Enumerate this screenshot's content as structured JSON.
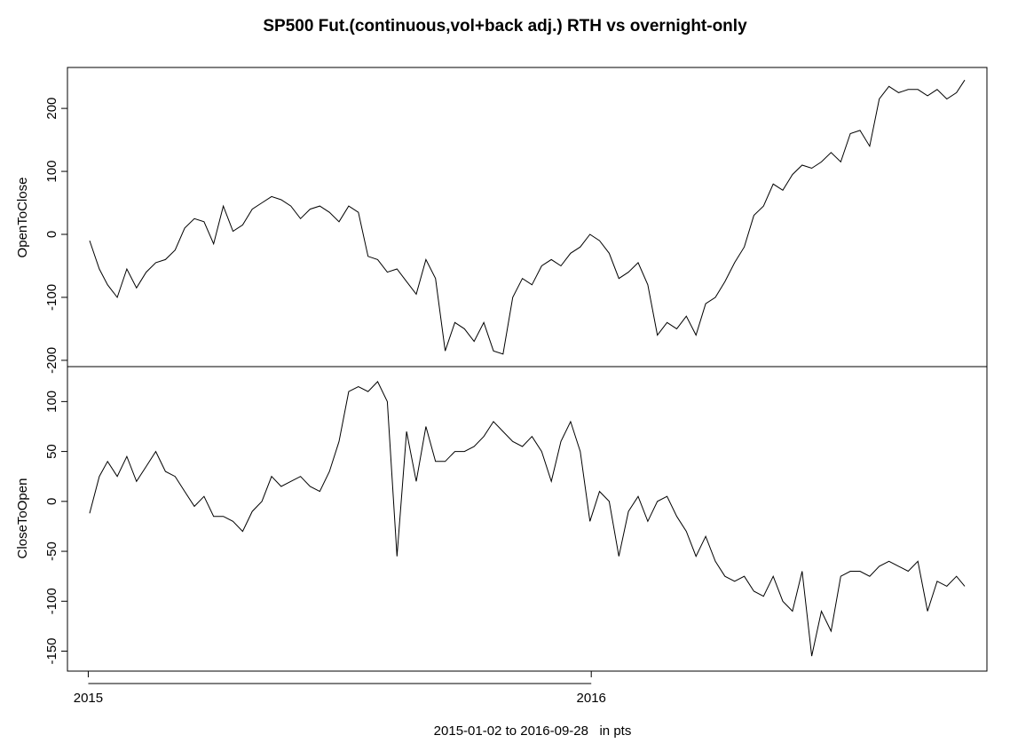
{
  "chart_data": {
    "type": "line",
    "title": "SP500 Fut.(continuous,vol+back adj.) RTH vs overnight-only",
    "xlabel": "2015-01-02 to 2016-09-28   in pts",
    "x_range": [
      "2015-01-02",
      "2016-09-28"
    ],
    "x_ticks": [
      {
        "date": "2015-01-01",
        "label": "2015"
      },
      {
        "date": "2016-01-01",
        "label": "2016"
      }
    ],
    "grid": false,
    "panels": [
      {
        "ylabel": "OpenToClose",
        "ylim": [
          -210,
          265
        ],
        "yticks": [
          -200,
          -100,
          0,
          100,
          200
        ],
        "series": {
          "x": [
            "2015-01-02",
            "2015-01-09",
            "2015-01-15",
            "2015-01-22",
            "2015-01-29",
            "2015-02-05",
            "2015-02-12",
            "2015-02-19",
            "2015-02-26",
            "2015-03-05",
            "2015-03-12",
            "2015-03-19",
            "2015-03-26",
            "2015-04-02",
            "2015-04-09",
            "2015-04-16",
            "2015-04-23",
            "2015-04-30",
            "2015-05-07",
            "2015-05-14",
            "2015-05-21",
            "2015-05-28",
            "2015-06-04",
            "2015-06-11",
            "2015-06-18",
            "2015-06-25",
            "2015-07-02",
            "2015-07-09",
            "2015-07-16",
            "2015-07-23",
            "2015-07-30",
            "2015-08-06",
            "2015-08-13",
            "2015-08-20",
            "2015-08-27",
            "2015-09-03",
            "2015-09-10",
            "2015-09-17",
            "2015-09-24",
            "2015-10-01",
            "2015-10-08",
            "2015-10-15",
            "2015-10-22",
            "2015-10-29",
            "2015-11-05",
            "2015-11-12",
            "2015-11-19",
            "2015-11-26",
            "2015-12-03",
            "2015-12-10",
            "2015-12-17",
            "2015-12-24",
            "2015-12-31",
            "2016-01-07",
            "2016-01-14",
            "2016-01-21",
            "2016-01-28",
            "2016-02-04",
            "2016-02-11",
            "2016-02-18",
            "2016-02-25",
            "2016-03-03",
            "2016-03-10",
            "2016-03-17",
            "2016-03-24",
            "2016-03-31",
            "2016-04-07",
            "2016-04-14",
            "2016-04-21",
            "2016-04-28",
            "2016-05-05",
            "2016-05-12",
            "2016-05-19",
            "2016-05-26",
            "2016-06-02",
            "2016-06-09",
            "2016-06-16",
            "2016-06-23",
            "2016-06-30",
            "2016-07-07",
            "2016-07-14",
            "2016-07-21",
            "2016-07-28",
            "2016-08-04",
            "2016-08-11",
            "2016-08-18",
            "2016-08-25",
            "2016-09-01",
            "2016-09-08",
            "2016-09-15",
            "2016-09-22",
            "2016-09-28"
          ],
          "y": [
            -10,
            -55,
            -80,
            -100,
            -55,
            -85,
            -60,
            -45,
            -40,
            -25,
            10,
            25,
            20,
            -15,
            45,
            5,
            15,
            40,
            50,
            60,
            55,
            45,
            25,
            40,
            45,
            35,
            20,
            45,
            35,
            -35,
            -40,
            -60,
            -55,
            -75,
            -95,
            -40,
            -70,
            -185,
            -140,
            -150,
            -170,
            -140,
            -185,
            -190,
            -100,
            -70,
            -80,
            -50,
            -40,
            -50,
            -30,
            -20,
            0,
            -10,
            -30,
            -70,
            -60,
            -45,
            -80,
            -160,
            -140,
            -150,
            -130,
            -160,
            -110,
            -100,
            -75,
            -45,
            -20,
            30,
            45,
            80,
            70,
            95,
            110,
            105,
            115,
            130,
            115,
            160,
            165,
            140,
            215,
            235,
            225,
            230,
            230,
            220,
            230,
            215,
            225,
            245
          ]
        }
      },
      {
        "ylabel": "CloseToOpen",
        "ylim": [
          -170,
          135
        ],
        "yticks": [
          -150,
          -100,
          -50,
          0,
          50,
          100
        ],
        "series": {
          "x": [
            "2015-01-02",
            "2015-01-09",
            "2015-01-15",
            "2015-01-22",
            "2015-01-29",
            "2015-02-05",
            "2015-02-12",
            "2015-02-19",
            "2015-02-26",
            "2015-03-05",
            "2015-03-12",
            "2015-03-19",
            "2015-03-26",
            "2015-04-02",
            "2015-04-09",
            "2015-04-16",
            "2015-04-23",
            "2015-04-30",
            "2015-05-07",
            "2015-05-14",
            "2015-05-21",
            "2015-05-28",
            "2015-06-04",
            "2015-06-11",
            "2015-06-18",
            "2015-06-25",
            "2015-07-02",
            "2015-07-09",
            "2015-07-16",
            "2015-07-23",
            "2015-07-30",
            "2015-08-06",
            "2015-08-13",
            "2015-08-20",
            "2015-08-27",
            "2015-09-03",
            "2015-09-10",
            "2015-09-17",
            "2015-09-24",
            "2015-10-01",
            "2015-10-08",
            "2015-10-15",
            "2015-10-22",
            "2015-10-29",
            "2015-11-05",
            "2015-11-12",
            "2015-11-19",
            "2015-11-26",
            "2015-12-03",
            "2015-12-10",
            "2015-12-17",
            "2015-12-24",
            "2015-12-31",
            "2016-01-07",
            "2016-01-14",
            "2016-01-21",
            "2016-01-28",
            "2016-02-04",
            "2016-02-11",
            "2016-02-18",
            "2016-02-25",
            "2016-03-03",
            "2016-03-10",
            "2016-03-17",
            "2016-03-24",
            "2016-03-31",
            "2016-04-07",
            "2016-04-14",
            "2016-04-21",
            "2016-04-28",
            "2016-05-05",
            "2016-05-12",
            "2016-05-19",
            "2016-05-26",
            "2016-06-02",
            "2016-06-09",
            "2016-06-16",
            "2016-06-23",
            "2016-06-30",
            "2016-07-07",
            "2016-07-14",
            "2016-07-21",
            "2016-07-28",
            "2016-08-04",
            "2016-08-11",
            "2016-08-18",
            "2016-08-25",
            "2016-09-01",
            "2016-09-08",
            "2016-09-15",
            "2016-09-22",
            "2016-09-28"
          ],
          "y": [
            -12,
            25,
            40,
            25,
            45,
            20,
            35,
            50,
            30,
            25,
            10,
            -5,
            5,
            -15,
            -15,
            -20,
            -30,
            -10,
            0,
            25,
            15,
            20,
            25,
            15,
            10,
            30,
            60,
            110,
            115,
            110,
            120,
            100,
            -55,
            70,
            20,
            75,
            40,
            40,
            50,
            50,
            55,
            65,
            80,
            70,
            60,
            55,
            65,
            50,
            20,
            60,
            80,
            50,
            -20,
            10,
            0,
            -55,
            -10,
            5,
            -20,
            0,
            5,
            -15,
            -30,
            -55,
            -35,
            -60,
            -75,
            -80,
            -75,
            -90,
            -95,
            -75,
            -100,
            -110,
            -70,
            -155,
            -110,
            -130,
            -75,
            -70,
            -70,
            -75,
            -65,
            -60,
            -65,
            -70,
            -60,
            -110,
            -80,
            -85,
            -75,
            -85
          ]
        }
      }
    ]
  }
}
